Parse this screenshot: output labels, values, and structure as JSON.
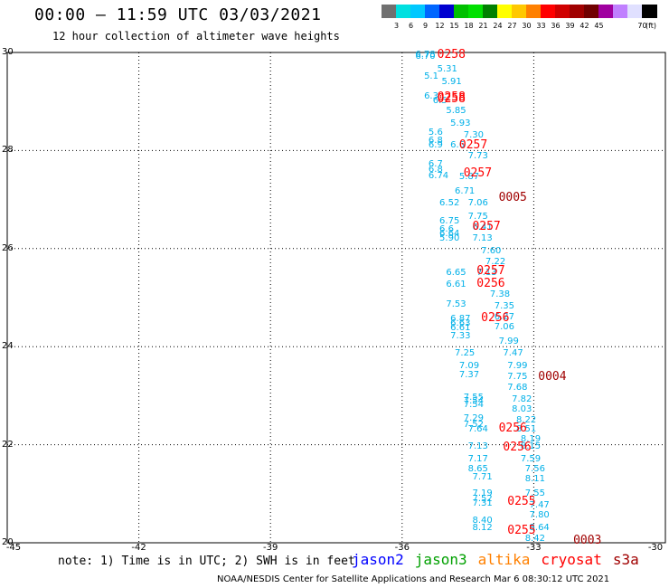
{
  "title": "00:00 – 11:59 UTC 03/03/2021",
  "subtitle": "12 hour collection of altimeter wave heights",
  "legend": {
    "colors": [
      "#707070",
      "#00e0e0",
      "#00c8ff",
      "#0066ff",
      "#0000d0",
      "#00c000",
      "#00e000",
      "#008000",
      "#ffff00",
      "#ffc800",
      "#ff8000",
      "#ff0000",
      "#d00000",
      "#a00000",
      "#700000",
      "#a000a0",
      "#c080ff",
      "#e0e0ff",
      "#000000"
    ],
    "labels": [
      "3",
      "6",
      "9",
      "12",
      "15",
      "18",
      "21",
      "24",
      "27",
      "30",
      "33",
      "36",
      "39",
      "42",
      "45",
      "70"
    ],
    "unit": "(ft)"
  },
  "axes": {
    "lat_ticks": [
      "30",
      "28",
      "26",
      "24",
      "22",
      "20"
    ],
    "lon_ticks": [
      "-45",
      "-42",
      "-39",
      "-36",
      "-33",
      "-30"
    ]
  },
  "chart_data": {
    "type": "scatter",
    "xlim": [
      -45,
      -30
    ],
    "ylim": [
      20,
      30
    ],
    "grid": true,
    "swh_points": [
      {
        "lon": -35.7,
        "lat": 29.95,
        "v": "6.78"
      },
      {
        "lon": -35.7,
        "lat": 29.9,
        "v": "6.70"
      },
      {
        "lon": -35.2,
        "lat": 29.65,
        "v": "5.31"
      },
      {
        "lon": -35.1,
        "lat": 29.4,
        "v": "5.91"
      },
      {
        "lon": -35.5,
        "lat": 29.5,
        "v": "5.1"
      },
      {
        "lon": -35.5,
        "lat": 29.1,
        "v": "6.3"
      },
      {
        "lon": -35.3,
        "lat": 29.0,
        "v": "6.5"
      },
      {
        "lon": -35.0,
        "lat": 28.8,
        "v": "5.85"
      },
      {
        "lon": -34.9,
        "lat": 28.55,
        "v": "5.93"
      },
      {
        "lon": -34.6,
        "lat": 28.3,
        "v": "7.30"
      },
      {
        "lon": -35.4,
        "lat": 28.35,
        "v": "5.6"
      },
      {
        "lon": -35.4,
        "lat": 28.2,
        "v": "6.8"
      },
      {
        "lon": -35.4,
        "lat": 28.1,
        "v": "6.9"
      },
      {
        "lon": -34.9,
        "lat": 28.1,
        "v": "6.6"
      },
      {
        "lon": -34.5,
        "lat": 27.88,
        "v": "7.73"
      },
      {
        "lon": -35.4,
        "lat": 27.72,
        "v": "6.7"
      },
      {
        "lon": -35.4,
        "lat": 27.6,
        "v": "6.8"
      },
      {
        "lon": -35.4,
        "lat": 27.48,
        "v": "6.74"
      },
      {
        "lon": -34.7,
        "lat": 27.45,
        "v": "5.87"
      },
      {
        "lon": -34.8,
        "lat": 27.15,
        "v": "6.71"
      },
      {
        "lon": -35.15,
        "lat": 26.92,
        "v": "6.52"
      },
      {
        "lon": -34.5,
        "lat": 26.92,
        "v": "7.06"
      },
      {
        "lon": -34.5,
        "lat": 26.65,
        "v": "7.75"
      },
      {
        "lon": -35.15,
        "lat": 26.55,
        "v": "6.75"
      },
      {
        "lon": -35.15,
        "lat": 26.38,
        "v": "6.6"
      },
      {
        "lon": -35.15,
        "lat": 26.3,
        "v": "6.64"
      },
      {
        "lon": -34.4,
        "lat": 26.42,
        "v": "6.41"
      },
      {
        "lon": -35.15,
        "lat": 26.2,
        "v": "5.90"
      },
      {
        "lon": -34.4,
        "lat": 26.2,
        "v": "7.13"
      },
      {
        "lon": -34.2,
        "lat": 25.95,
        "v": "7.60"
      },
      {
        "lon": -34.1,
        "lat": 25.72,
        "v": "7.22"
      },
      {
        "lon": -35.0,
        "lat": 25.5,
        "v": "6.65"
      },
      {
        "lon": -34.3,
        "lat": 25.5,
        "v": "7.13"
      },
      {
        "lon": -35.0,
        "lat": 25.25,
        "v": "6.61"
      },
      {
        "lon": -34.0,
        "lat": 25.05,
        "v": "7.38"
      },
      {
        "lon": -35.0,
        "lat": 24.85,
        "v": "7.53"
      },
      {
        "lon": -33.9,
        "lat": 24.82,
        "v": "7.35"
      },
      {
        "lon": -34.9,
        "lat": 24.55,
        "v": "6.87"
      },
      {
        "lon": -34.9,
        "lat": 24.47,
        "v": "6.63"
      },
      {
        "lon": -34.9,
        "lat": 24.38,
        "v": "6.61"
      },
      {
        "lon": -33.9,
        "lat": 24.6,
        "v": "6.27"
      },
      {
        "lon": -33.9,
        "lat": 24.4,
        "v": "7.06"
      },
      {
        "lon": -34.9,
        "lat": 24.2,
        "v": "7.33"
      },
      {
        "lon": -33.8,
        "lat": 24.1,
        "v": "7.99"
      },
      {
        "lon": -34.8,
        "lat": 23.85,
        "v": "7.25"
      },
      {
        "lon": -33.7,
        "lat": 23.85,
        "v": "7.47"
      },
      {
        "lon": -34.7,
        "lat": 23.6,
        "v": "7.09"
      },
      {
        "lon": -33.6,
        "lat": 23.6,
        "v": "7.99"
      },
      {
        "lon": -34.7,
        "lat": 23.42,
        "v": "7.37"
      },
      {
        "lon": -33.6,
        "lat": 23.38,
        "v": "7.75"
      },
      {
        "lon": -33.6,
        "lat": 23.15,
        "v": "7.68"
      },
      {
        "lon": -34.6,
        "lat": 22.95,
        "v": "7.55"
      },
      {
        "lon": -34.6,
        "lat": 22.88,
        "v": "7.54"
      },
      {
        "lon": -34.6,
        "lat": 22.8,
        "v": "7.54"
      },
      {
        "lon": -33.5,
        "lat": 22.92,
        "v": "7.82"
      },
      {
        "lon": -33.5,
        "lat": 22.72,
        "v": "8.03"
      },
      {
        "lon": -34.6,
        "lat": 22.52,
        "v": "7.29"
      },
      {
        "lon": -34.6,
        "lat": 22.4,
        "v": "7.52"
      },
      {
        "lon": -33.4,
        "lat": 22.5,
        "v": "8.22"
      },
      {
        "lon": -34.5,
        "lat": 22.3,
        "v": "7.64"
      },
      {
        "lon": -33.4,
        "lat": 22.3,
        "v": "8.51"
      },
      {
        "lon": -33.3,
        "lat": 22.1,
        "v": "8.19"
      },
      {
        "lon": -34.5,
        "lat": 21.95,
        "v": "7.13"
      },
      {
        "lon": -33.3,
        "lat": 21.95,
        "v": "8.15"
      },
      {
        "lon": -34.5,
        "lat": 21.7,
        "v": "7.17"
      },
      {
        "lon": -33.3,
        "lat": 21.7,
        "v": "7.59"
      },
      {
        "lon": -34.5,
        "lat": 21.5,
        "v": "8.65"
      },
      {
        "lon": -33.2,
        "lat": 21.5,
        "v": "7.56"
      },
      {
        "lon": -34.4,
        "lat": 21.32,
        "v": "7.71"
      },
      {
        "lon": -33.2,
        "lat": 21.3,
        "v": "8.11"
      },
      {
        "lon": -34.4,
        "lat": 21.0,
        "v": "7.19"
      },
      {
        "lon": -33.2,
        "lat": 21.0,
        "v": "7.55"
      },
      {
        "lon": -34.4,
        "lat": 20.88,
        "v": "7.52"
      },
      {
        "lon": -34.4,
        "lat": 20.8,
        "v": "7.31"
      },
      {
        "lon": -33.1,
        "lat": 20.75,
        "v": "7.47"
      },
      {
        "lon": -33.1,
        "lat": 20.55,
        "v": "7.80"
      },
      {
        "lon": -34.4,
        "lat": 20.45,
        "v": "8.40"
      },
      {
        "lon": -34.4,
        "lat": 20.3,
        "v": "8.12"
      },
      {
        "lon": -33.1,
        "lat": 20.3,
        "v": "8.64"
      },
      {
        "lon": -33.2,
        "lat": 20.08,
        "v": "8.42"
      }
    ],
    "pass_times": [
      {
        "lon": -35.2,
        "lat": 29.97,
        "t": "0258",
        "sat": "cryosat"
      },
      {
        "lon": -35.2,
        "lat": 29.1,
        "t": "0258",
        "sat": "cryosat"
      },
      {
        "lon": -35.2,
        "lat": 29.05,
        "t": "0258",
        "sat": "cryosat"
      },
      {
        "lon": -34.7,
        "lat": 28.12,
        "t": "0257",
        "sat": "cryosat"
      },
      {
        "lon": -34.6,
        "lat": 27.55,
        "t": "0257",
        "sat": "cryosat"
      },
      {
        "lon": -34.4,
        "lat": 26.45,
        "t": "0257",
        "sat": "cryosat"
      },
      {
        "lon": -34.3,
        "lat": 25.55,
        "t": "0257",
        "sat": "cryosat"
      },
      {
        "lon": -34.3,
        "lat": 25.3,
        "t": "0256",
        "sat": "cryosat"
      },
      {
        "lon": -34.2,
        "lat": 24.6,
        "t": "0256",
        "sat": "cryosat"
      },
      {
        "lon": -33.8,
        "lat": 22.35,
        "t": "0256",
        "sat": "cryosat"
      },
      {
        "lon": -33.7,
        "lat": 21.95,
        "t": "0256",
        "sat": "cryosat"
      },
      {
        "lon": -33.6,
        "lat": 20.85,
        "t": "0255",
        "sat": "cryosat"
      },
      {
        "lon": -33.6,
        "lat": 20.25,
        "t": "0255",
        "sat": "cryosat"
      },
      {
        "lon": -33.8,
        "lat": 27.05,
        "t": "0005",
        "sat": "s3a"
      },
      {
        "lon": -32.9,
        "lat": 23.4,
        "t": "0004",
        "sat": "s3a"
      },
      {
        "lon": -32.1,
        "lat": 20.05,
        "t": "0003",
        "sat": "s3a"
      }
    ]
  },
  "note": "note: 1) Time is in UTC; 2) SWH is in feet",
  "satellites": [
    {
      "name": "jason2",
      "color": "#0000ff"
    },
    {
      "name": "jason3",
      "color": "#00a000"
    },
    {
      "name": "altika",
      "color": "#ff8000"
    },
    {
      "name": "cryosat",
      "color": "#ff0000"
    },
    {
      "name": "s3a",
      "color": "#a00000"
    }
  ],
  "credit": "NOAA/NESDIS Center for Satellite Applications and Research   Mar  6 08:30:12 UTC 2021"
}
